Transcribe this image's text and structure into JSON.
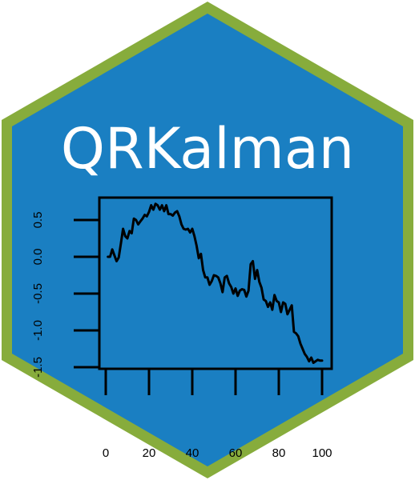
{
  "logo": {
    "title": "QRKalman",
    "colors": {
      "border": "#87ac3c",
      "fill": "#1a7fc2",
      "text": "#ffffff",
      "ink": "#000000"
    }
  },
  "chart_data": {
    "type": "line",
    "title": "",
    "xlabel": "",
    "ylabel": "",
    "xlim": [
      0,
      100
    ],
    "ylim": [
      -1.5,
      0.6
    ],
    "grid": false,
    "xticks": [
      0,
      20,
      40,
      60,
      80,
      100
    ],
    "xtick_labels": [
      "0",
      "20",
      "40",
      "60",
      "80",
      "100"
    ],
    "yticks": [
      0.5,
      0.0,
      -0.5,
      -1.0,
      -1.5
    ],
    "ytick_labels": [
      "0.5",
      "0.0",
      "-0.5",
      "-1.0",
      "-1.5"
    ],
    "series": [
      {
        "x": [
          1,
          2,
          3,
          4,
          5,
          6,
          7,
          8,
          9,
          10,
          11,
          12,
          13,
          14,
          15,
          16,
          17,
          18,
          19,
          20,
          21,
          22,
          23,
          24,
          25,
          26,
          27,
          28,
          29,
          30,
          31,
          32,
          33,
          34,
          35,
          36,
          37,
          38,
          39,
          40,
          41,
          42,
          43,
          44,
          45,
          46,
          47,
          48,
          49,
          50,
          51,
          52,
          53,
          54,
          55,
          56,
          57,
          58,
          59,
          60,
          61,
          62,
          63,
          64,
          65,
          66,
          67,
          68,
          69,
          70,
          71,
          72,
          73,
          74,
          75,
          76,
          77,
          78,
          79,
          80,
          81,
          82,
          83,
          84,
          85,
          86,
          87,
          88,
          89,
          90,
          91,
          92,
          93,
          94,
          95,
          96,
          97,
          98,
          99,
          100
        ],
        "values": [
          0.0,
          0.0,
          0.1,
          0.02,
          -0.06,
          -0.01,
          0.18,
          0.38,
          0.28,
          0.25,
          0.35,
          0.32,
          0.52,
          0.5,
          0.44,
          0.48,
          0.52,
          0.57,
          0.55,
          0.61,
          0.7,
          0.64,
          0.72,
          0.7,
          0.64,
          0.7,
          0.62,
          0.7,
          0.58,
          0.58,
          0.56,
          0.6,
          0.62,
          0.55,
          0.44,
          0.38,
          0.37,
          0.38,
          0.33,
          0.38,
          0.28,
          0.15,
          -0.02,
          0.04,
          -0.18,
          -0.28,
          -0.28,
          -0.38,
          -0.33,
          -0.25,
          -0.26,
          -0.28,
          -0.36,
          -0.48,
          -0.28,
          -0.26,
          -0.36,
          -0.41,
          -0.5,
          -0.43,
          -0.53,
          -0.46,
          -0.44,
          -0.45,
          -0.54,
          -0.46,
          -0.1,
          -0.06,
          -0.3,
          -0.18,
          -0.34,
          -0.42,
          -0.58,
          -0.6,
          -0.68,
          -0.62,
          -0.72,
          -0.52,
          -0.6,
          -0.62,
          -0.75,
          -0.62,
          -0.64,
          -0.78,
          -0.72,
          -0.66,
          -1.02,
          -1.04,
          -1.08,
          -1.18,
          -1.25,
          -1.32,
          -1.36,
          -1.42,
          -1.37,
          -1.44,
          -1.42,
          -1.4,
          -1.41,
          -1.41
        ]
      }
    ]
  }
}
